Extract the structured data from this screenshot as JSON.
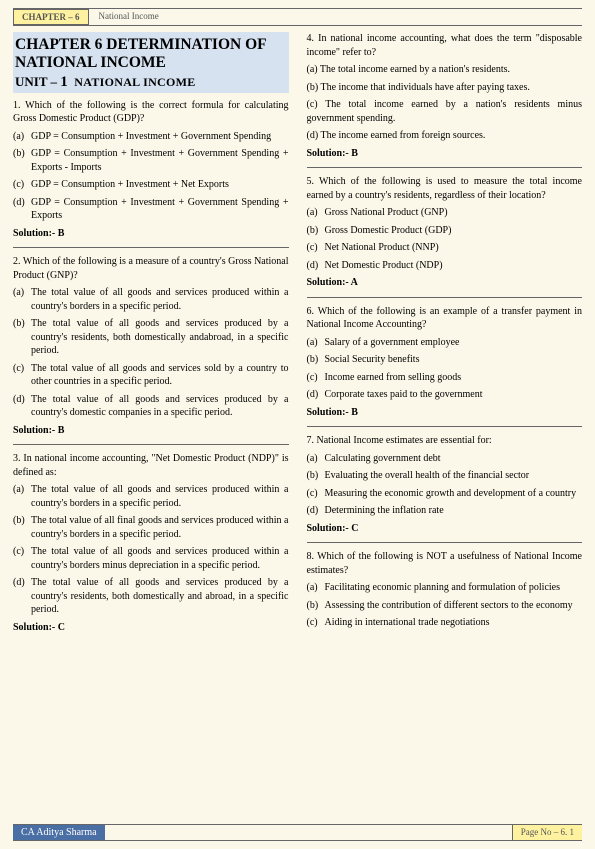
{
  "header": {
    "chapter": "CHAPTER – 6",
    "title": "National Income"
  },
  "titleBlock": {
    "main": "CHAPTER 6 DETERMINATION OF NATIONAL INCOME",
    "unitPrefix": "UNIT –",
    "unitNum": "1",
    "unitLabel": "NATIONAL INCOME"
  },
  "colors": {
    "pageBg": "#fbf8e9",
    "yellowBg": "#fef2a0",
    "blueHeading": "#d6e2f0",
    "footerBlue": "#4a6fa5",
    "border": "#666666",
    "text": "#000000"
  },
  "leftQuestions": [
    {
      "q": "1. Which of the following is the correct formula for calculating Gross Domestic Product (GDP)?",
      "opts": [
        {
          "l": "(a)",
          "t": "GDP = Consumption + Investment + Government Spending"
        },
        {
          "l": "(b)",
          "t": "GDP = Consumption + Investment + Government Spending + Exports - Imports"
        },
        {
          "l": "(c)",
          "t": "GDP = Consumption + Investment + Net Exports"
        },
        {
          "l": "(d)",
          "t": "GDP = Consumption + Investment + Government Spending + Exports"
        }
      ],
      "sol": "Solution:- B"
    },
    {
      "q": "2. Which of the following is a measure of a country's Gross National Product (GNP)?",
      "opts": [
        {
          "l": "(a)",
          "t": "The total value of all goods and services produced within a country's borders in a specific period."
        },
        {
          "l": "(b)",
          "t": "The total value of all goods and services produced by a country's residents, both domestically andabroad, in a specific period."
        },
        {
          "l": "(c)",
          "t": "The total value of all goods and services sold by a country to other countries in a specific period."
        },
        {
          "l": "(d)",
          "t": "The total value of all goods and services produced by a country's domestic companies in a specific period."
        }
      ],
      "sol": "Solution:- B"
    },
    {
      "q": "3. In national income accounting, \"Net Domestic Product (NDP)\" is defined as:",
      "opts": [
        {
          "l": "(a)",
          "t": "The total value of all goods and services produced within a country's borders in a specific period."
        },
        {
          "l": "(b)",
          "t": "The total value of all final goods and services produced within a country's borders in a specific period."
        },
        {
          "l": "(c)",
          "t": "The total value of all goods and services produced within a country's borders minus depreciation in a specific period."
        },
        {
          "l": "(d)",
          "t": "The total value of all goods and services produced by a country's residents, both domestically and abroad, in a specific period."
        }
      ],
      "sol": "Solution:- C"
    }
  ],
  "rightQuestions": [
    {
      "q": "4. In national income accounting, what does the term \"disposable income\" refer to?",
      "inlineOpts": [
        "(a) The total income earned by a nation's residents.",
        "(b) The income that individuals have after paying taxes.",
        "(c) The total income earned by a nation's residents minus government spending.",
        "(d) The income earned from foreign sources."
      ],
      "sol": "Solution:- B"
    },
    {
      "q": "5. Which of the following is used to measure the total income earned by a country's residents, regardless of their location?",
      "opts": [
        {
          "l": "(a)",
          "t": "Gross National Product (GNP)"
        },
        {
          "l": "(b)",
          "t": "Gross Domestic Product (GDP)"
        },
        {
          "l": "(c)",
          "t": "Net National Product (NNP)"
        },
        {
          "l": "(d)",
          "t": "Net Domestic Product (NDP)"
        }
      ],
      "sol": "Solution:- A"
    },
    {
      "q": "6. Which of the following is an example of a transfer payment in National Income Accounting?",
      "opts": [
        {
          "l": "(a)",
          "t": "Salary of a government employee"
        },
        {
          "l": "(b)",
          "t": "Social Security benefits"
        },
        {
          "l": "(c)",
          "t": "Income earned from selling goods"
        },
        {
          "l": "(d)",
          "t": "Corporate taxes paid to the government"
        }
      ],
      "sol": "Solution:- B"
    },
    {
      "q": "7. National Income estimates are essential for:",
      "opts": [
        {
          "l": "(a)",
          "t": "Calculating government debt"
        },
        {
          "l": "(b)",
          "t": "Evaluating the overall health of the financial sector"
        },
        {
          "l": "(c)",
          "t": "Measuring the economic growth and development of a country"
        },
        {
          "l": "(d)",
          "t": "Determining the inflation rate"
        }
      ],
      "sol": "Solution:- C"
    },
    {
      "q": "8. Which of the following is NOT a usefulness of National Income estimates?",
      "opts": [
        {
          "l": "(a)",
          "t": "Facilitating economic planning and formulation of policies"
        },
        {
          "l": "(b)",
          "t": "Assessing the contribution of different sectors to the economy"
        },
        {
          "l": "(c)",
          "t": "Aiding in international trade negotiations"
        }
      ],
      "sol": ""
    }
  ],
  "footer": {
    "author": "CA Aditya Sharma",
    "page": "Page No – 6. 1"
  }
}
